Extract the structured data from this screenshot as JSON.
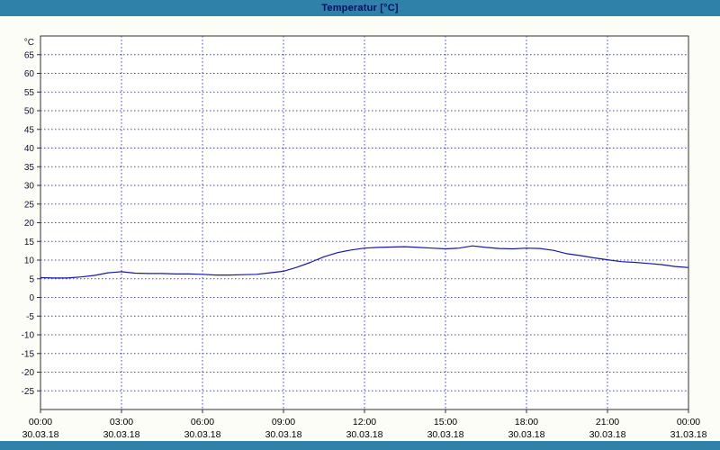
{
  "title_bar": {
    "title": "Temperatur [°C]"
  },
  "colors": {
    "titlebar_bg": "#2F81A9",
    "title_text": "#001060",
    "outer_bg": "#FDFDF8"
  },
  "chart_data": {
    "type": "line",
    "title": "Temperatur [°C]",
    "ylabel": "°C",
    "xlabel": "",
    "ylim": [
      -30,
      70
    ],
    "ytick_min": -25,
    "ytick_max": 65,
    "ytick_step": 5,
    "xlim": [
      0,
      24
    ],
    "grid": true,
    "grid_color": "#4444BB",
    "axis_color": "#303030",
    "plot_bg": "#FFFFFF",
    "tick_label_color": "#101030",
    "date_label_color": "#000000",
    "xticks": [
      {
        "hour": 0,
        "time": "00:00",
        "date": "30.03.18"
      },
      {
        "hour": 3,
        "time": "03:00",
        "date": "30.03.18"
      },
      {
        "hour": 6,
        "time": "06:00",
        "date": "30.03.18"
      },
      {
        "hour": 9,
        "time": "09:00",
        "date": "30.03.18"
      },
      {
        "hour": 12,
        "time": "12:00",
        "date": "30.03.18"
      },
      {
        "hour": 15,
        "time": "15:00",
        "date": "30.03.18"
      },
      {
        "hour": 18,
        "time": "18:00",
        "date": "30.03.18"
      },
      {
        "hour": 21,
        "time": "21:00",
        "date": "30.03.18"
      },
      {
        "hour": 24,
        "time": "00:00",
        "date": "31.03.18"
      }
    ],
    "series": [
      {
        "name": "Temperatur",
        "color": "#1818A8",
        "points": [
          [
            0,
            5.3
          ],
          [
            0.5,
            5.2
          ],
          [
            1,
            5.2
          ],
          [
            1.5,
            5.5
          ],
          [
            2,
            5.9
          ],
          [
            2.5,
            6.6
          ],
          [
            3,
            6.9
          ],
          [
            3.5,
            6.5
          ],
          [
            4,
            6.4
          ],
          [
            4.5,
            6.4
          ],
          [
            5,
            6.3
          ],
          [
            5.5,
            6.3
          ],
          [
            6,
            6.2
          ],
          [
            6.5,
            6.0
          ],
          [
            7,
            6.0
          ],
          [
            7.5,
            6.1
          ],
          [
            8,
            6.2
          ],
          [
            8.5,
            6.6
          ],
          [
            9,
            7.0
          ],
          [
            9.5,
            8.1
          ],
          [
            10,
            9.4
          ],
          [
            10.5,
            10.9
          ],
          [
            11,
            12.0
          ],
          [
            11.5,
            12.7
          ],
          [
            12,
            13.2
          ],
          [
            12.5,
            13.4
          ],
          [
            13,
            13.5
          ],
          [
            13.5,
            13.6
          ],
          [
            14,
            13.4
          ],
          [
            14.5,
            13.2
          ],
          [
            15,
            13.0
          ],
          [
            15.5,
            13.2
          ],
          [
            16,
            13.8
          ],
          [
            16.5,
            13.4
          ],
          [
            17,
            13.1
          ],
          [
            17.5,
            13.0
          ],
          [
            18,
            13.2
          ],
          [
            18.5,
            13.1
          ],
          [
            19,
            12.6
          ],
          [
            19.5,
            11.7
          ],
          [
            20,
            11.2
          ],
          [
            20.5,
            10.6
          ],
          [
            21,
            10.1
          ],
          [
            21.5,
            9.6
          ],
          [
            22,
            9.4
          ],
          [
            22.5,
            9.1
          ],
          [
            23,
            8.8
          ],
          [
            23.5,
            8.3
          ],
          [
            24,
            8.0
          ]
        ]
      }
    ]
  }
}
